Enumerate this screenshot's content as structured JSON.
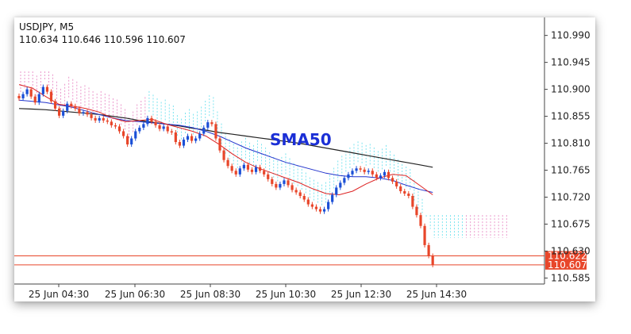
{
  "header": {
    "symbol_line": "USDJPY, M5",
    "ohlc_line": "110.634 110.646 110.596 110.607"
  },
  "annotation": "SMA50",
  "chart_data": {
    "type": "candlestick",
    "title": "USDJPY, M5",
    "ylim": [
      110.575,
      111.02
    ],
    "yticks": [
      "110.990",
      "110.945",
      "110.900",
      "110.855",
      "110.810",
      "110.765",
      "110.720",
      "110.675",
      "110.630",
      "110.585"
    ],
    "xticks": [
      "25 Jun 04:30",
      "25 Jun 06:30",
      "25 Jun 08:30",
      "25 Jun 10:30",
      "25 Jun 12:30",
      "25 Jun 14:30"
    ],
    "price_tags": [
      {
        "label": "110.622",
        "value": 110.622,
        "color": "#e8462a"
      },
      {
        "label": "110.607",
        "value": 110.607,
        "color": "#e8462a"
      }
    ],
    "colors": {
      "up": "#1b4fd6",
      "down": "#e8462a",
      "sma_long": "#222222",
      "sma_mid": "#2233cc",
      "sma_short": "#dd2222",
      "cloud_pink": "#e05fb0",
      "cloud_cyan": "#35d6e8"
    },
    "close": [
      110.885,
      110.892,
      110.9,
      110.888,
      110.878,
      110.892,
      110.904,
      110.896,
      110.88,
      110.868,
      110.856,
      110.864,
      110.876,
      110.872,
      110.868,
      110.86,
      110.862,
      110.858,
      110.852,
      110.848,
      110.852,
      110.848,
      110.846,
      110.84,
      110.838,
      110.83,
      110.822,
      110.808,
      110.818,
      110.83,
      110.836,
      110.842,
      110.852,
      110.846,
      110.84,
      110.834,
      110.838,
      110.83,
      110.828,
      110.812,
      110.806,
      110.816,
      110.822,
      110.814,
      110.818,
      110.826,
      110.836,
      110.845,
      110.842,
      110.818,
      110.798,
      110.782,
      110.772,
      110.764,
      110.758,
      110.768,
      110.774,
      110.766,
      110.762,
      110.77,
      110.764,
      110.758,
      110.75,
      110.742,
      110.736,
      110.742,
      110.748,
      110.74,
      110.732,
      110.728,
      110.722,
      110.716,
      110.708,
      110.704,
      110.7,
      110.696,
      110.7,
      110.712,
      110.724,
      110.736,
      110.744,
      110.752,
      110.758,
      110.764,
      110.768,
      110.766,
      110.762,
      110.764,
      110.758,
      110.752,
      110.756,
      110.762,
      110.752,
      110.746,
      110.738,
      110.73,
      110.726,
      110.722,
      110.704,
      110.69,
      110.672,
      110.64,
      110.622,
      110.607
    ],
    "sma50": [
      110.868,
      110.867,
      110.866,
      110.864,
      110.862,
      110.86,
      110.858,
      110.855,
      110.852,
      110.848,
      110.845,
      110.842,
      110.839,
      110.835,
      110.832,
      110.828,
      110.825,
      110.822,
      110.819,
      110.816,
      110.813,
      110.81,
      110.806,
      110.802,
      110.798,
      110.794,
      110.79,
      110.786,
      110.782,
      110.778,
      110.774,
      110.77
    ],
    "sma_mid": [
      110.882,
      110.88,
      110.878,
      110.874,
      110.87,
      110.864,
      110.858,
      110.852,
      110.848,
      110.846,
      110.844,
      110.842,
      110.84,
      110.836,
      110.83,
      110.822,
      110.812,
      110.802,
      110.794,
      110.786,
      110.778,
      110.772,
      110.766,
      110.76,
      110.756,
      110.754,
      110.754,
      110.752,
      110.748,
      110.74,
      110.733,
      110.728
    ],
    "sma_short": [
      110.908,
      110.902,
      110.888,
      110.875,
      110.872,
      110.868,
      110.862,
      110.852,
      110.846,
      110.848,
      110.85,
      110.842,
      110.836,
      110.83,
      110.822,
      110.808,
      110.792,
      110.778,
      110.768,
      110.76,
      110.752,
      110.744,
      110.734,
      110.726,
      110.724,
      110.73,
      110.742,
      110.752,
      110.758,
      110.756,
      110.74,
      110.724
    ]
  }
}
